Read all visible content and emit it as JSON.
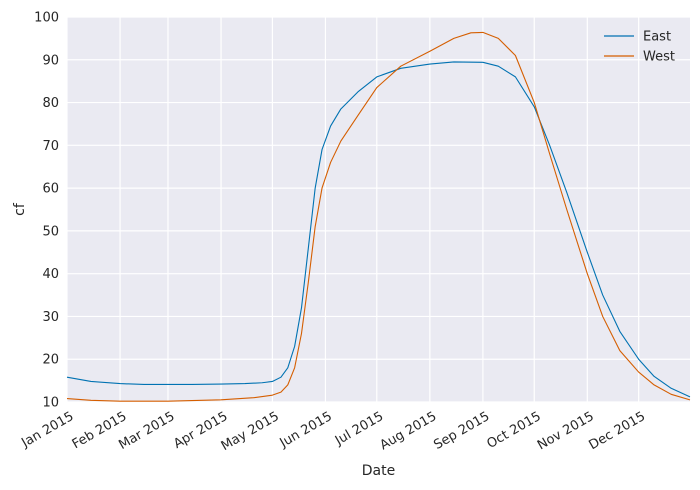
{
  "chart_data": {
    "type": "line",
    "title": "",
    "xlabel": "Date",
    "ylabel": "cf",
    "xlim": [
      "2015-01-01",
      "2015-12-31"
    ],
    "ylim": [
      10,
      100
    ],
    "yticks": [
      10,
      20,
      30,
      40,
      50,
      60,
      70,
      80,
      90,
      100
    ],
    "xticks": [
      {
        "date": "2015-01-01",
        "label": "Jan 2015"
      },
      {
        "date": "2015-02-01",
        "label": "Feb 2015"
      },
      {
        "date": "2015-03-01",
        "label": "Mar 2015"
      },
      {
        "date": "2015-04-01",
        "label": "Apr 2015"
      },
      {
        "date": "2015-05-01",
        "label": "May 2015"
      },
      {
        "date": "2015-06-01",
        "label": "Jun 2015"
      },
      {
        "date": "2015-07-01",
        "label": "Jul 2015"
      },
      {
        "date": "2015-08-01",
        "label": "Aug 2015"
      },
      {
        "date": "2015-09-01",
        "label": "Sep 2015"
      },
      {
        "date": "2015-10-01",
        "label": "Oct 2015"
      },
      {
        "date": "2015-11-01",
        "label": "Nov 2015"
      },
      {
        "date": "2015-12-01",
        "label": "Dec 2015"
      }
    ],
    "grid": true,
    "legend_position": "top-right",
    "series": [
      {
        "name": "East",
        "color": "#0072b2",
        "points": [
          [
            "2015-01-01",
            15.8
          ],
          [
            "2015-01-15",
            14.8
          ],
          [
            "2015-02-01",
            14.3
          ],
          [
            "2015-02-15",
            14.1
          ],
          [
            "2015-03-01",
            14.1
          ],
          [
            "2015-03-15",
            14.1
          ],
          [
            "2015-04-01",
            14.2
          ],
          [
            "2015-04-15",
            14.3
          ],
          [
            "2015-04-25",
            14.5
          ],
          [
            "2015-05-01",
            14.8
          ],
          [
            "2015-05-06",
            15.8
          ],
          [
            "2015-05-10",
            18.0
          ],
          [
            "2015-05-14",
            23.0
          ],
          [
            "2015-05-18",
            32.0
          ],
          [
            "2015-05-22",
            46.0
          ],
          [
            "2015-05-26",
            60.0
          ],
          [
            "2015-05-30",
            69.0
          ],
          [
            "2015-06-04",
            74.5
          ],
          [
            "2015-06-10",
            78.5
          ],
          [
            "2015-06-20",
            82.5
          ],
          [
            "2015-07-01",
            86.0
          ],
          [
            "2015-07-15",
            88.0
          ],
          [
            "2015-08-01",
            89.0
          ],
          [
            "2015-08-15",
            89.5
          ],
          [
            "2015-09-01",
            89.4
          ],
          [
            "2015-09-10",
            88.5
          ],
          [
            "2015-09-20",
            86.0
          ],
          [
            "2015-10-01",
            79.0
          ],
          [
            "2015-10-10",
            70.0
          ],
          [
            "2015-10-20",
            59.0
          ],
          [
            "2015-11-01",
            45.0
          ],
          [
            "2015-11-10",
            35.0
          ],
          [
            "2015-11-20",
            26.5
          ],
          [
            "2015-12-01",
            20.0
          ],
          [
            "2015-12-10",
            16.0
          ],
          [
            "2015-12-20",
            13.2
          ],
          [
            "2015-12-31",
            11.2
          ]
        ]
      },
      {
        "name": "West",
        "color": "#d55e00",
        "points": [
          [
            "2015-01-01",
            10.8
          ],
          [
            "2015-01-15",
            10.4
          ],
          [
            "2015-02-01",
            10.2
          ],
          [
            "2015-03-01",
            10.2
          ],
          [
            "2015-04-01",
            10.5
          ],
          [
            "2015-04-20",
            11.0
          ],
          [
            "2015-05-01",
            11.6
          ],
          [
            "2015-05-06",
            12.3
          ],
          [
            "2015-05-10",
            14.0
          ],
          [
            "2015-05-14",
            18.0
          ],
          [
            "2015-05-18",
            26.0
          ],
          [
            "2015-05-22",
            38.0
          ],
          [
            "2015-05-26",
            51.0
          ],
          [
            "2015-05-30",
            60.0
          ],
          [
            "2015-06-04",
            66.0
          ],
          [
            "2015-06-10",
            71.0
          ],
          [
            "2015-06-20",
            77.0
          ],
          [
            "2015-07-01",
            83.5
          ],
          [
            "2015-07-15",
            88.5
          ],
          [
            "2015-08-01",
            92.0
          ],
          [
            "2015-08-15",
            95.0
          ],
          [
            "2015-08-25",
            96.3
          ],
          [
            "2015-09-01",
            96.4
          ],
          [
            "2015-09-10",
            95.0
          ],
          [
            "2015-09-20",
            91.0
          ],
          [
            "2015-10-01",
            80.0
          ],
          [
            "2015-10-10",
            68.0
          ],
          [
            "2015-10-20",
            55.0
          ],
          [
            "2015-11-01",
            40.0
          ],
          [
            "2015-11-10",
            30.0
          ],
          [
            "2015-11-20",
            22.0
          ],
          [
            "2015-12-01",
            17.0
          ],
          [
            "2015-12-10",
            14.0
          ],
          [
            "2015-12-20",
            11.8
          ],
          [
            "2015-12-31",
            10.5
          ]
        ]
      }
    ]
  }
}
